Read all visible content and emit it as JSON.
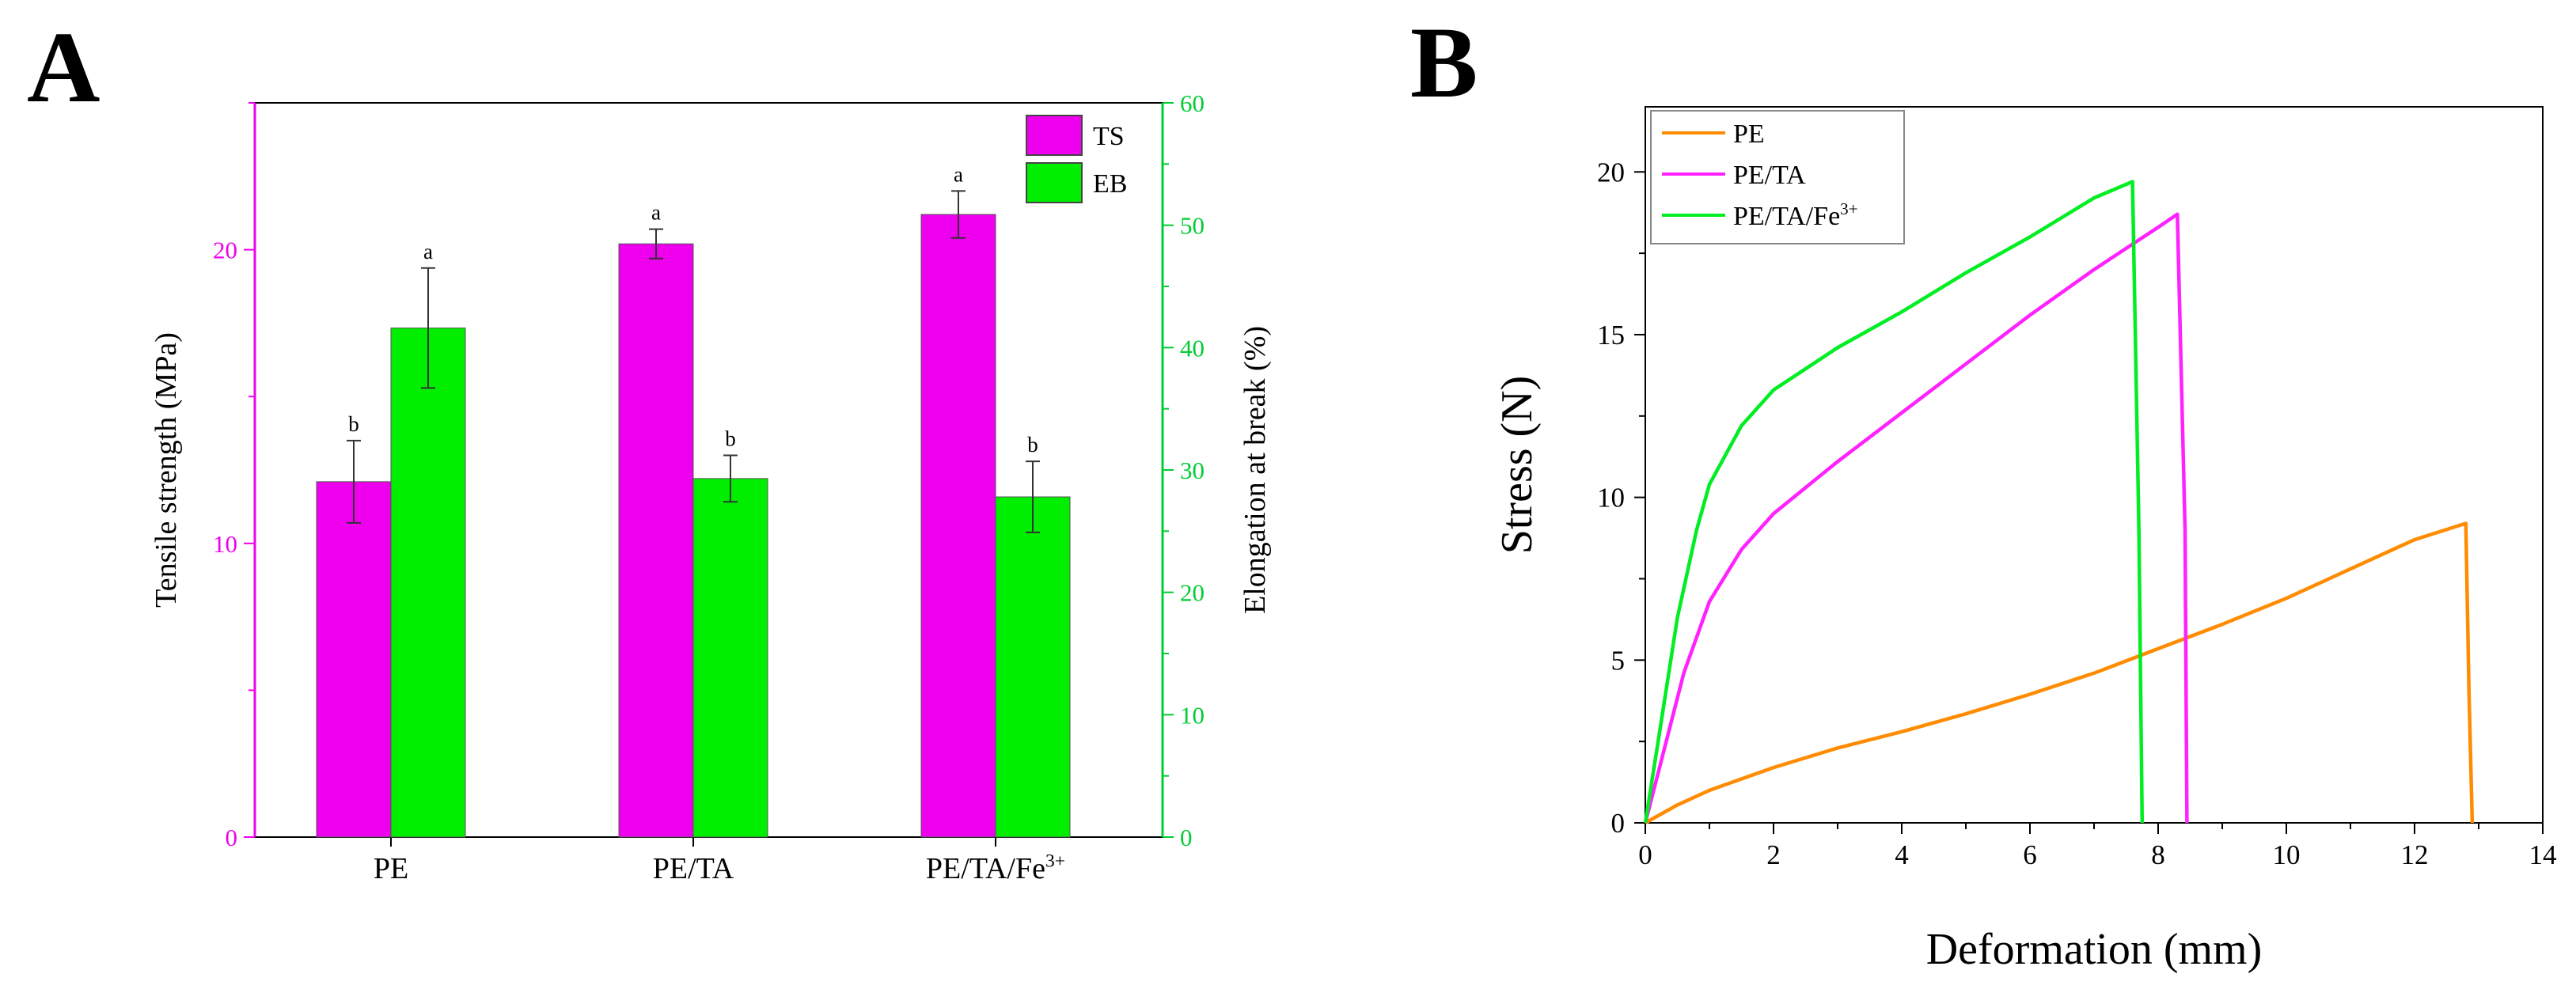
{
  "colors": {
    "ts": "#ee00ee",
    "eb": "#00ee00",
    "pe_line": "#ff8c00",
    "peta_line": "#ff22ff",
    "petafe_line": "#00ee22",
    "axis_left": "#ee00ee",
    "axis_right": "#00cc33"
  },
  "chart_data": [
    {
      "panel": "A",
      "type": "bar",
      "title": "",
      "categories": [
        "PE",
        "PE/TA",
        "PE/TA/Fe"
      ],
      "category_superscripts": [
        "",
        "",
        "3+"
      ],
      "ylabel": "Tensile strength (MPa)",
      "y2label": "Elongation at break (%)",
      "ylim": [
        0,
        25
      ],
      "y2lim": [
        0,
        60
      ],
      "yticks": [
        "0",
        "10",
        "20"
      ],
      "y2ticks": [
        "0",
        "10",
        "20",
        "30",
        "40",
        "50",
        "60"
      ],
      "series": [
        {
          "name": "TS",
          "axis": "left",
          "values": [
            12.1,
            20.2,
            21.2
          ],
          "errors": [
            1.4,
            0.5,
            0.8
          ],
          "letters": [
            "b",
            "a",
            "a"
          ]
        },
        {
          "name": "EB",
          "axis": "right",
          "values": [
            41.6,
            29.3,
            27.8
          ],
          "errors": [
            4.9,
            1.9,
            2.9
          ],
          "letters": [
            "a",
            "b",
            "b"
          ]
        }
      ],
      "legend": [
        "TS",
        "EB"
      ],
      "legend_position": "top-right"
    },
    {
      "panel": "B",
      "type": "line",
      "title": "",
      "xlabel": "Deformation (mm)",
      "ylabel": "Stress (N)",
      "xlim": [
        0,
        14
      ],
      "ylim": [
        0,
        22
      ],
      "xticks": [
        "0",
        "2",
        "4",
        "6",
        "8",
        "10",
        "12",
        "14"
      ],
      "yticks": [
        "0",
        "5",
        "10",
        "15",
        "20"
      ],
      "legend_position": "top-left",
      "series": [
        {
          "name": "PE",
          "superscript": "",
          "x": [
            0,
            0.5,
            1,
            2,
            3,
            4,
            5,
            6,
            7,
            8,
            9,
            10,
            11,
            12,
            12.8,
            12.85,
            12.9
          ],
          "y": [
            0,
            0.55,
            1.0,
            1.7,
            2.3,
            2.8,
            3.35,
            3.95,
            4.6,
            5.35,
            6.1,
            6.9,
            7.8,
            8.7,
            9.2,
            4.0,
            0
          ]
        },
        {
          "name": "PE/TA",
          "superscript": "",
          "x": [
            0,
            0.3,
            0.6,
            1,
            1.5,
            2,
            3,
            4,
            5,
            6,
            7,
            8,
            8.3,
            8.42,
            8.45
          ],
          "y": [
            0,
            2.3,
            4.6,
            6.8,
            8.4,
            9.5,
            11.1,
            12.6,
            14.1,
            15.6,
            17.0,
            18.3,
            18.7,
            9.0,
            0
          ]
        },
        {
          "name": "PE/TA/Fe",
          "superscript": "3+",
          "x": [
            0,
            0.2,
            0.5,
            0.8,
            1,
            1.5,
            2,
            3,
            4,
            5,
            6,
            7,
            7.6,
            7.7,
            7.75
          ],
          "y": [
            0,
            2.5,
            6.3,
            9.0,
            10.4,
            12.2,
            13.3,
            14.6,
            15.7,
            16.9,
            18.0,
            19.2,
            19.7,
            9.0,
            0
          ]
        }
      ]
    }
  ],
  "panels": {
    "a_label": "A",
    "b_label": "B"
  }
}
